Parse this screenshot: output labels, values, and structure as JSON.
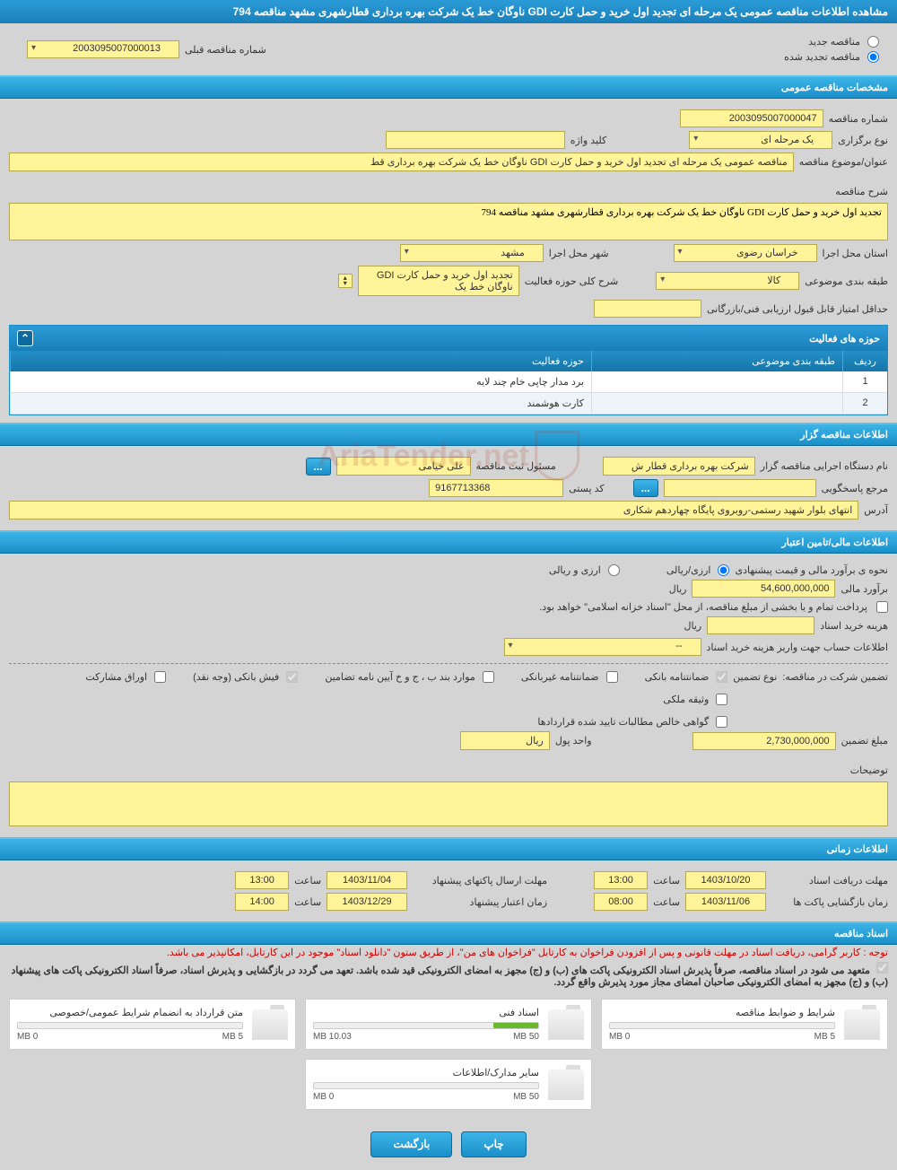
{
  "header": {
    "title": "مشاهده اطلاعات مناقصه عمومی یک مرحله ای تجدید اول خرید و حمل کارت GDI ناوگان خط یک شرکت بهره برداری قطارشهری مشهد مناقصه 794"
  },
  "tender_mode": {
    "new_label": "مناقصه جدید",
    "renewed_label": "مناقصه تجدید شده",
    "selected": "renewed",
    "prev_label": "شماره مناقصه قبلی",
    "prev_value": "2003095007000013"
  },
  "sections": {
    "general": "مشخصات مناقصه عمومی",
    "organizer": "اطلاعات مناقصه گزار",
    "financial": "اطلاعات مالی/تامین اعتبار",
    "timing": "اطلاعات زمانی",
    "docs": "اسناد مناقصه"
  },
  "general": {
    "tender_no_label": "شماره مناقصه",
    "tender_no": "2003095007000047",
    "type_label": "نوع برگزاری",
    "type_value": "یک مرحله ای",
    "keyword_label": "کلید واژه",
    "keyword_value": "",
    "subject_label": "عنوان/موضوع مناقصه",
    "subject_value": "مناقصه عمومی یک مرحله ای تجدید اول خرید و حمل کارت GDI ناوگان خط یک شرکت بهره برداری قط",
    "desc_label": "شرح مناقصه",
    "desc_value": "تجدید اول خرید و حمل کارت GDI ناوگان خط یک شرکت بهره برداری قطارشهری مشهد مناقصه 794",
    "province_label": "استان محل اجرا",
    "province_value": "خراسان رضوی",
    "city_label": "شهر محل اجرا",
    "city_value": "مشهد",
    "category_label": "طبقه بندی موضوعی",
    "category_value": "کالا",
    "activity_desc_label": "شرح کلی حوزه فعالیت",
    "activity_desc_value": "تجدید اول خرید و حمل کارت GDI ناوگان خط یک",
    "min_score_label": "حداقل امتیاز قابل قبول ارزیابی فنی/بازرگانی",
    "min_score_value": "",
    "activity_table": {
      "title": "حوزه های فعالیت",
      "cols": {
        "idx": "ردیف",
        "cat": "طبقه بندی موضوعی",
        "act": "حوزه فعالیت"
      },
      "rows": [
        {
          "idx": "1",
          "cat": "",
          "act": "برد مدار چاپی خام چند لایه"
        },
        {
          "idx": "2",
          "cat": "",
          "act": "کارت هوشمند"
        }
      ]
    }
  },
  "organizer": {
    "exec_label": "نام دستگاه اجرایی مناقصه گزار",
    "exec_value": "شرکت بهره برداری قطار ش",
    "resp_label": "مسئول ثبت مناقصه",
    "resp_value": "علی خیامی",
    "contact_label": "مرجع پاسخگویی",
    "postal_label": "کد پستی",
    "postal_value": "9167713368",
    "address_label": "آدرس",
    "address_value": "انتهای بلوار شهید رستمی-روبروی پایگاه چهاردهم شکاری"
  },
  "financial": {
    "estimate_method_label": "نحوه ی برآورد مالی و قیمت پیشنهادی",
    "rial_fx_label": "ارزی/ریالی",
    "fx_rial_label": "ارزی و ریالی",
    "estimate_label": "برآورد مالی",
    "estimate_value": "54,600,000,000",
    "rial_unit": "ریال",
    "payment_note": "پرداخت تمام و یا بخشی از مبلغ مناقصه، از محل \"اسناد خزانه اسلامی\" خواهد بود.",
    "purchase_cost_label": "هزینه خرید اسناد",
    "purchase_cost_value": "",
    "account_label": "اطلاعات حساب جهت واریز هزینه خرید اسناد",
    "account_value": "--",
    "guarantee_header_label": "تضمین شرکت در مناقصه:",
    "guarantee_type_label": "نوع تضمین",
    "chk_bank": "ضمانتنامه بانکی",
    "chk_nonbank": "ضمانتنامه غیربانکی",
    "chk_bond": "موارد بند ب ، ج و خ آیین نامه تضامین",
    "chk_fish": "فیش بانکی (وجه نقد)",
    "chk_stock": "اوراق مشارکت",
    "chk_prop": "وثیقه ملکی",
    "chk_cert": "گواهی خالص مطالبات تایید شده قراردادها",
    "guarantee_amount_label": "مبلغ تضمین",
    "guarantee_amount": "2,730,000,000",
    "currency_label": "واحد پول",
    "currency_value": "ریال",
    "notes_label": "توضیحات"
  },
  "timing": {
    "receive_label": "مهلت دریافت اسناد",
    "receive_date": "1403/10/20",
    "receive_time": "13:00",
    "open_label": "زمان بازگشایی پاکت ها",
    "open_date": "1403/11/06",
    "open_time": "08:00",
    "submit_label": "مهلت ارسال پاکتهای پیشنهاد",
    "submit_date": "1403/11/04",
    "submit_time": "13:00",
    "validity_label": "زمان اعتبار پیشنهاد",
    "validity_date": "1403/12/29",
    "validity_time": "14:00",
    "time_lbl": "ساعت"
  },
  "docs": {
    "note1": "توجه : کاربر گرامی، دریافت اسناد در مهلت قانونی و پس از افزودن فراخوان به کارتابل \"فراخوان های من\"، از طریق ستون \"دانلود اسناد\" موجود در این کارتابل، امکانپذیر می باشد.",
    "note2": "متعهد می شود در اسناد مناقصه، صرفاً پذیرش اسناد الکترونیکی پاکت های (ب) و (ج) مجهز به امضای الکترونیکی قید شده باشد. تعهد می گردد در بازگشایی و پذیرش اسناد، صرفاً اسناد الکترونیکی پاکت های پیشنهاد (ب) و (ج) مجهز به امضای الکترونیکی صاحبان امضای مجاز مورد پذیرش واقع گردد.",
    "items": [
      {
        "title": "شرایط و ضوابط مناقصه",
        "used": "0 MB",
        "max": "5 MB",
        "fill": 0
      },
      {
        "title": "اسناد فنی",
        "used": "10.03 MB",
        "max": "50 MB",
        "fill": 20
      },
      {
        "title": "متن قرارداد به انضمام شرایط عمومی/خصوصی",
        "used": "0 MB",
        "max": "5 MB",
        "fill": 0
      },
      {
        "title": "سایر مدارک/اطلاعات",
        "used": "0 MB",
        "max": "50 MB",
        "fill": 0
      }
    ]
  },
  "buttons": {
    "print": "چاپ",
    "back": "بازگشت"
  },
  "watermark": "AriaTender.net"
}
